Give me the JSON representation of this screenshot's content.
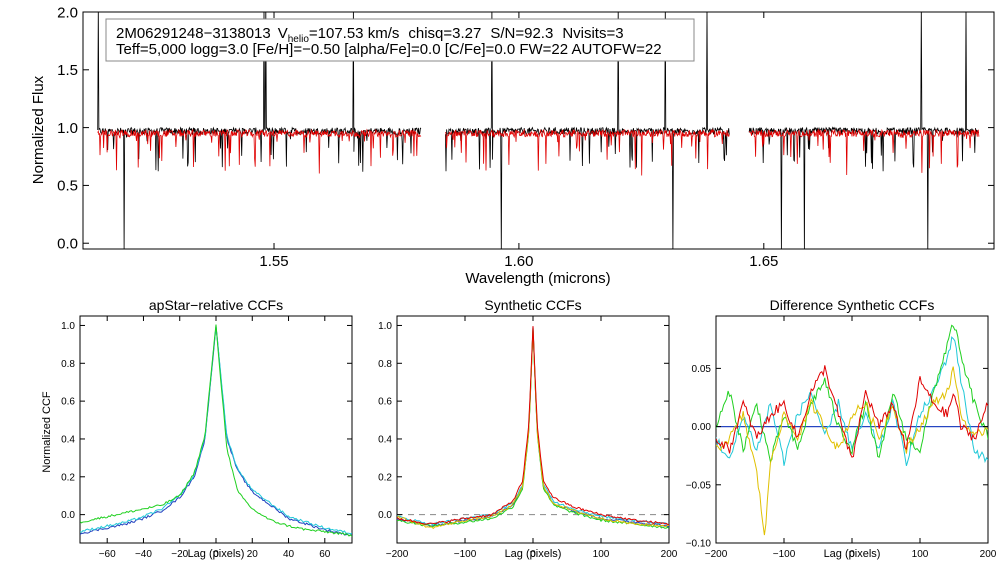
{
  "chart_data": [
    {
      "type": "line",
      "panel": "spectrum",
      "title": "",
      "xlabel": "Wavelength (microns)",
      "ylabel": "Normalized Flux",
      "xlim": [
        1.511,
        1.697
      ],
      "ylim": [
        -0.05,
        2.0
      ],
      "xticks": [
        1.55,
        1.6,
        1.65
      ],
      "xtick_labels": [
        "1.55",
        "1.60",
        "1.65"
      ],
      "yticks": [
        0.0,
        0.5,
        1.0,
        1.5,
        2.0
      ],
      "ytick_labels": [
        "0.0",
        "0.5",
        "1.0",
        "1.5",
        "2.0"
      ],
      "annotation": {
        "star_id": "2M06291248−3138013",
        "vhelio_prefix": "V",
        "vhelio_sub": "helio",
        "vhelio_value": "=107.53 km/s",
        "chisq": "chisq=3.27",
        "snr": "S/N=92.3",
        "nvisits": "Nvisits=3",
        "line2": "Teff=5,000 logg=3.0 [Fe/H]=−0.50 [alpha/Fe]=0.0 [C/Fe]=0.0 FW=22 AUTOFW=22"
      },
      "chips": [
        [
          1.514,
          1.58
        ],
        [
          1.585,
          1.643
        ],
        [
          1.647,
          1.694
        ]
      ],
      "series": [
        {
          "name": "observed spectrum",
          "color": "#000000",
          "level": 0.97
        },
        {
          "name": "model spectrum",
          "color": "#e00000",
          "level": 0.95
        }
      ]
    },
    {
      "type": "line",
      "panel": "apstar_ccf",
      "title": "apStar−relative CCFs",
      "xlabel": "Lag (pixels)",
      "ylabel": "Normalized CCF",
      "xlim": [
        -75,
        75
      ],
      "ylim": [
        -0.15,
        1.05
      ],
      "xticks": [
        -60,
        -40,
        -20,
        0,
        20,
        40,
        60
      ],
      "xtick_labels": [
        "−60",
        "−40",
        "−20",
        "0",
        "20",
        "40",
        "60"
      ],
      "yticks": [
        0.0,
        0.2,
        0.4,
        0.6,
        0.8,
        1.0
      ],
      "ytick_labels": [
        "0.0",
        "0.2",
        "0.4",
        "0.6",
        "0.8",
        "1.0"
      ],
      "series": [
        {
          "name": "ccf-blue",
          "color": "#1f3fbf",
          "x": [
            -75,
            -60,
            -50,
            -40,
            -30,
            -20,
            -12,
            -6,
            -2,
            0,
            2,
            6,
            12,
            20,
            30,
            40,
            50,
            60,
            75
          ],
          "y": [
            -0.1,
            -0.07,
            -0.05,
            -0.02,
            0.02,
            0.09,
            0.2,
            0.4,
            0.8,
            1.0,
            0.8,
            0.4,
            0.23,
            0.12,
            0.05,
            -0.02,
            -0.05,
            -0.08,
            -0.11
          ]
        },
        {
          "name": "ccf-cyan",
          "color": "#20c8d8",
          "x": [
            -75,
            -60,
            -50,
            -40,
            -30,
            -20,
            -12,
            -6,
            -2,
            0,
            2,
            6,
            12,
            20,
            30,
            40,
            50,
            60,
            75
          ],
          "y": [
            -0.09,
            -0.06,
            -0.04,
            -0.01,
            0.03,
            0.1,
            0.21,
            0.41,
            0.81,
            0.99,
            0.81,
            0.41,
            0.24,
            0.13,
            0.06,
            -0.01,
            -0.04,
            -0.07,
            -0.1
          ]
        },
        {
          "name": "ccf-green",
          "color": "#20d020",
          "x": [
            -75,
            -60,
            -50,
            -40,
            -30,
            -20,
            -12,
            -6,
            -2,
            0,
            2,
            6,
            12,
            20,
            30,
            40,
            50,
            60,
            75
          ],
          "y": [
            -0.04,
            -0.01,
            0.01,
            0.03,
            0.05,
            0.1,
            0.22,
            0.42,
            0.82,
            1.0,
            0.78,
            0.35,
            0.12,
            0.03,
            -0.03,
            -0.06,
            -0.08,
            -0.09,
            -0.11
          ]
        }
      ]
    },
    {
      "type": "line",
      "panel": "synthetic_ccf",
      "title": "Synthetic CCFs",
      "xlabel": "Lag (pixels)",
      "ylabel": "",
      "xlim": [
        -200,
        200
      ],
      "ylim": [
        -0.15,
        1.05
      ],
      "xticks": [
        -200,
        -100,
        0,
        100,
        200
      ],
      "xtick_labels": [
        "−200",
        "−100",
        "0",
        "100",
        "200"
      ],
      "yticks": [
        0.0,
        0.2,
        0.4,
        0.6,
        0.8,
        1.0
      ],
      "ytick_labels": [
        "0.0",
        "0.2",
        "0.4",
        "0.6",
        "0.8",
        "1.0"
      ],
      "baseline": 0.0,
      "series": [
        {
          "name": "blue",
          "color": "#1f3fbf",
          "x": [
            -200,
            -150,
            -100,
            -60,
            -30,
            -15,
            -6,
            0,
            6,
            15,
            30,
            60,
            100,
            150,
            200
          ],
          "y": [
            -0.02,
            -0.06,
            -0.03,
            -0.01,
            0.05,
            0.15,
            0.45,
            0.99,
            0.45,
            0.15,
            0.06,
            0.02,
            -0.02,
            -0.04,
            -0.06
          ]
        },
        {
          "name": "cyan",
          "color": "#20c8d8",
          "x": [
            -200,
            -150,
            -100,
            -60,
            -30,
            -15,
            -6,
            0,
            6,
            15,
            30,
            60,
            100,
            150,
            200
          ],
          "y": [
            -0.01,
            -0.05,
            -0.02,
            0.0,
            0.06,
            0.16,
            0.46,
            0.99,
            0.46,
            0.16,
            0.07,
            0.03,
            -0.01,
            -0.03,
            -0.05
          ]
        },
        {
          "name": "green",
          "color": "#20d020",
          "x": [
            -200,
            -150,
            -100,
            -60,
            -30,
            -15,
            -6,
            0,
            6,
            15,
            30,
            60,
            100,
            150,
            200
          ],
          "y": [
            -0.03,
            -0.06,
            -0.04,
            -0.02,
            0.04,
            0.14,
            0.44,
            0.98,
            0.44,
            0.14,
            0.05,
            0.01,
            -0.03,
            -0.05,
            -0.07
          ]
        },
        {
          "name": "yellow",
          "color": "#e0c000",
          "x": [
            -200,
            -150,
            -100,
            -60,
            -30,
            -15,
            -6,
            0,
            6,
            15,
            30,
            60,
            100,
            150,
            200
          ],
          "y": [
            -0.01,
            -0.07,
            -0.03,
            -0.01,
            0.05,
            0.15,
            0.45,
            0.99,
            0.45,
            0.15,
            0.06,
            0.02,
            -0.02,
            -0.05,
            -0.06
          ]
        },
        {
          "name": "red",
          "color": "#e00000",
          "x": [
            -200,
            -150,
            -100,
            -60,
            -30,
            -15,
            -6,
            0,
            6,
            15,
            30,
            60,
            100,
            150,
            200
          ],
          "y": [
            -0.02,
            -0.05,
            -0.02,
            0.0,
            0.07,
            0.18,
            0.48,
            1.0,
            0.48,
            0.18,
            0.09,
            0.04,
            0.0,
            -0.03,
            -0.05
          ]
        }
      ]
    },
    {
      "type": "line",
      "panel": "difference_ccf",
      "title": "Difference Synthetic CCFs",
      "xlabel": "Lag (pixels)",
      "ylabel": "",
      "xlim": [
        -200,
        200
      ],
      "ylim": [
        -0.1,
        0.095
      ],
      "xticks": [
        -200,
        -100,
        0,
        100,
        200
      ],
      "xtick_labels": [
        "−200",
        "−100",
        "0",
        "100",
        "200"
      ],
      "yticks": [
        -0.1,
        -0.05,
        0.0,
        0.05
      ],
      "ytick_labels": [
        "−0.10",
        "−0.05",
        "0.00",
        "0.05"
      ],
      "baseline": 0.0,
      "series": [
        {
          "name": "blue",
          "color": "#1f3fbf",
          "x": [
            -200,
            200
          ],
          "y": [
            0.0,
            0.0
          ]
        },
        {
          "name": "cyan",
          "color": "#20c8d8",
          "x": [
            -200,
            -180,
            -160,
            -140,
            -120,
            -100,
            -80,
            -60,
            -40,
            -20,
            0,
            20,
            40,
            60,
            80,
            100,
            120,
            140,
            150,
            160,
            180,
            200
          ],
          "y": [
            -0.01,
            -0.03,
            0.01,
            -0.02,
            0.02,
            -0.03,
            0.01,
            0.03,
            -0.01,
            0.02,
            -0.02,
            0.01,
            -0.02,
            0.02,
            -0.03,
            0.01,
            0.03,
            0.06,
            0.08,
            0.04,
            -0.02,
            -0.03
          ]
        },
        {
          "name": "green",
          "color": "#20d020",
          "x": [
            -200,
            -180,
            -160,
            -140,
            -120,
            -100,
            -80,
            -60,
            -40,
            -20,
            0,
            20,
            40,
            60,
            80,
            100,
            120,
            140,
            150,
            160,
            180,
            200
          ],
          "y": [
            0.0,
            0.03,
            -0.02,
            0.02,
            -0.03,
            0.01,
            -0.02,
            0.02,
            0.04,
            0.0,
            -0.02,
            0.02,
            -0.03,
            0.03,
            -0.01,
            -0.02,
            0.03,
            0.07,
            0.09,
            0.06,
            0.02,
            -0.01
          ]
        },
        {
          "name": "yellow",
          "color": "#e0c000",
          "x": [
            -200,
            -180,
            -160,
            -140,
            -128,
            -120,
            -100,
            -80,
            -60,
            -40,
            -20,
            0,
            20,
            40,
            60,
            80,
            100,
            120,
            140,
            150,
            160,
            180,
            200
          ],
          "y": [
            -0.02,
            -0.01,
            0.01,
            -0.04,
            -0.095,
            -0.03,
            0.01,
            -0.01,
            0.02,
            0.0,
            -0.02,
            0.01,
            0.02,
            -0.01,
            0.02,
            -0.02,
            0.0,
            0.02,
            0.03,
            0.05,
            0.01,
            -0.01,
            0.0
          ]
        },
        {
          "name": "red",
          "color": "#e00000",
          "x": [
            -200,
            -180,
            -160,
            -140,
            -120,
            -100,
            -80,
            -60,
            -40,
            -20,
            0,
            20,
            40,
            60,
            80,
            100,
            120,
            140,
            150,
            160,
            180,
            200
          ],
          "y": [
            -0.01,
            -0.02,
            0.02,
            -0.01,
            0.01,
            0.02,
            -0.01,
            0.03,
            0.05,
            0.01,
            -0.03,
            0.03,
            0.0,
            0.02,
            -0.02,
            0.04,
            0.02,
            0.01,
            0.03,
            0.0,
            -0.01,
            0.02
          ]
        }
      ]
    }
  ]
}
